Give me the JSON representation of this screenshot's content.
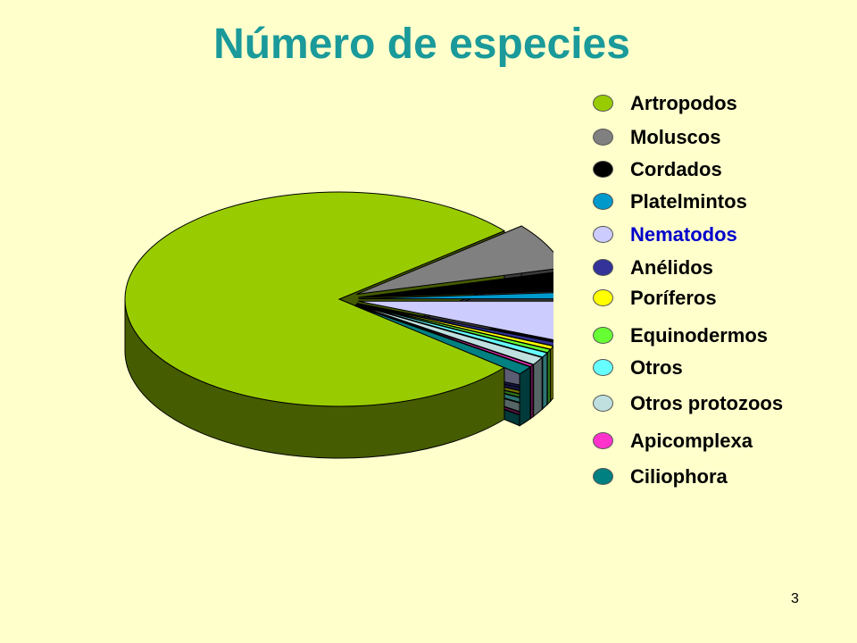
{
  "chart_data": {
    "type": "pie",
    "title": "Número de especies",
    "style": "3d-exploded",
    "legend_placement": "right",
    "series": [
      {
        "label": "Artropodos",
        "value": 78.0,
        "color": "#99cc00"
      },
      {
        "label": "Moluscos",
        "value": 7.0,
        "color": "#808080"
      },
      {
        "label": "Cordados",
        "value": 3.0,
        "color": "#000000"
      },
      {
        "label": "Platelmintos",
        "value": 1.0,
        "color": "#0099cc"
      },
      {
        "label": "Nematodos",
        "value": 6.0,
        "color": "#ccccff",
        "label_color": "#0000cc"
      },
      {
        "label": "Anélidos",
        "value": 0.5,
        "color": "#333399"
      },
      {
        "label": "Poríferos",
        "value": 0.5,
        "color": "#ffff00"
      },
      {
        "label": "Equinodermos",
        "value": 0.5,
        "color": "#66ff33"
      },
      {
        "label": "Otros",
        "value": 0.7,
        "color": "#66ffff"
      },
      {
        "label": "Otros protozoos",
        "value": 1.2,
        "color": "#c0e0e0"
      },
      {
        "label": "Apicomplexa",
        "value": 0.3,
        "color": "#ff33cc"
      },
      {
        "label": "Ciliophora",
        "value": 1.3,
        "color": "#008080"
      }
    ]
  },
  "page_number": "3"
}
